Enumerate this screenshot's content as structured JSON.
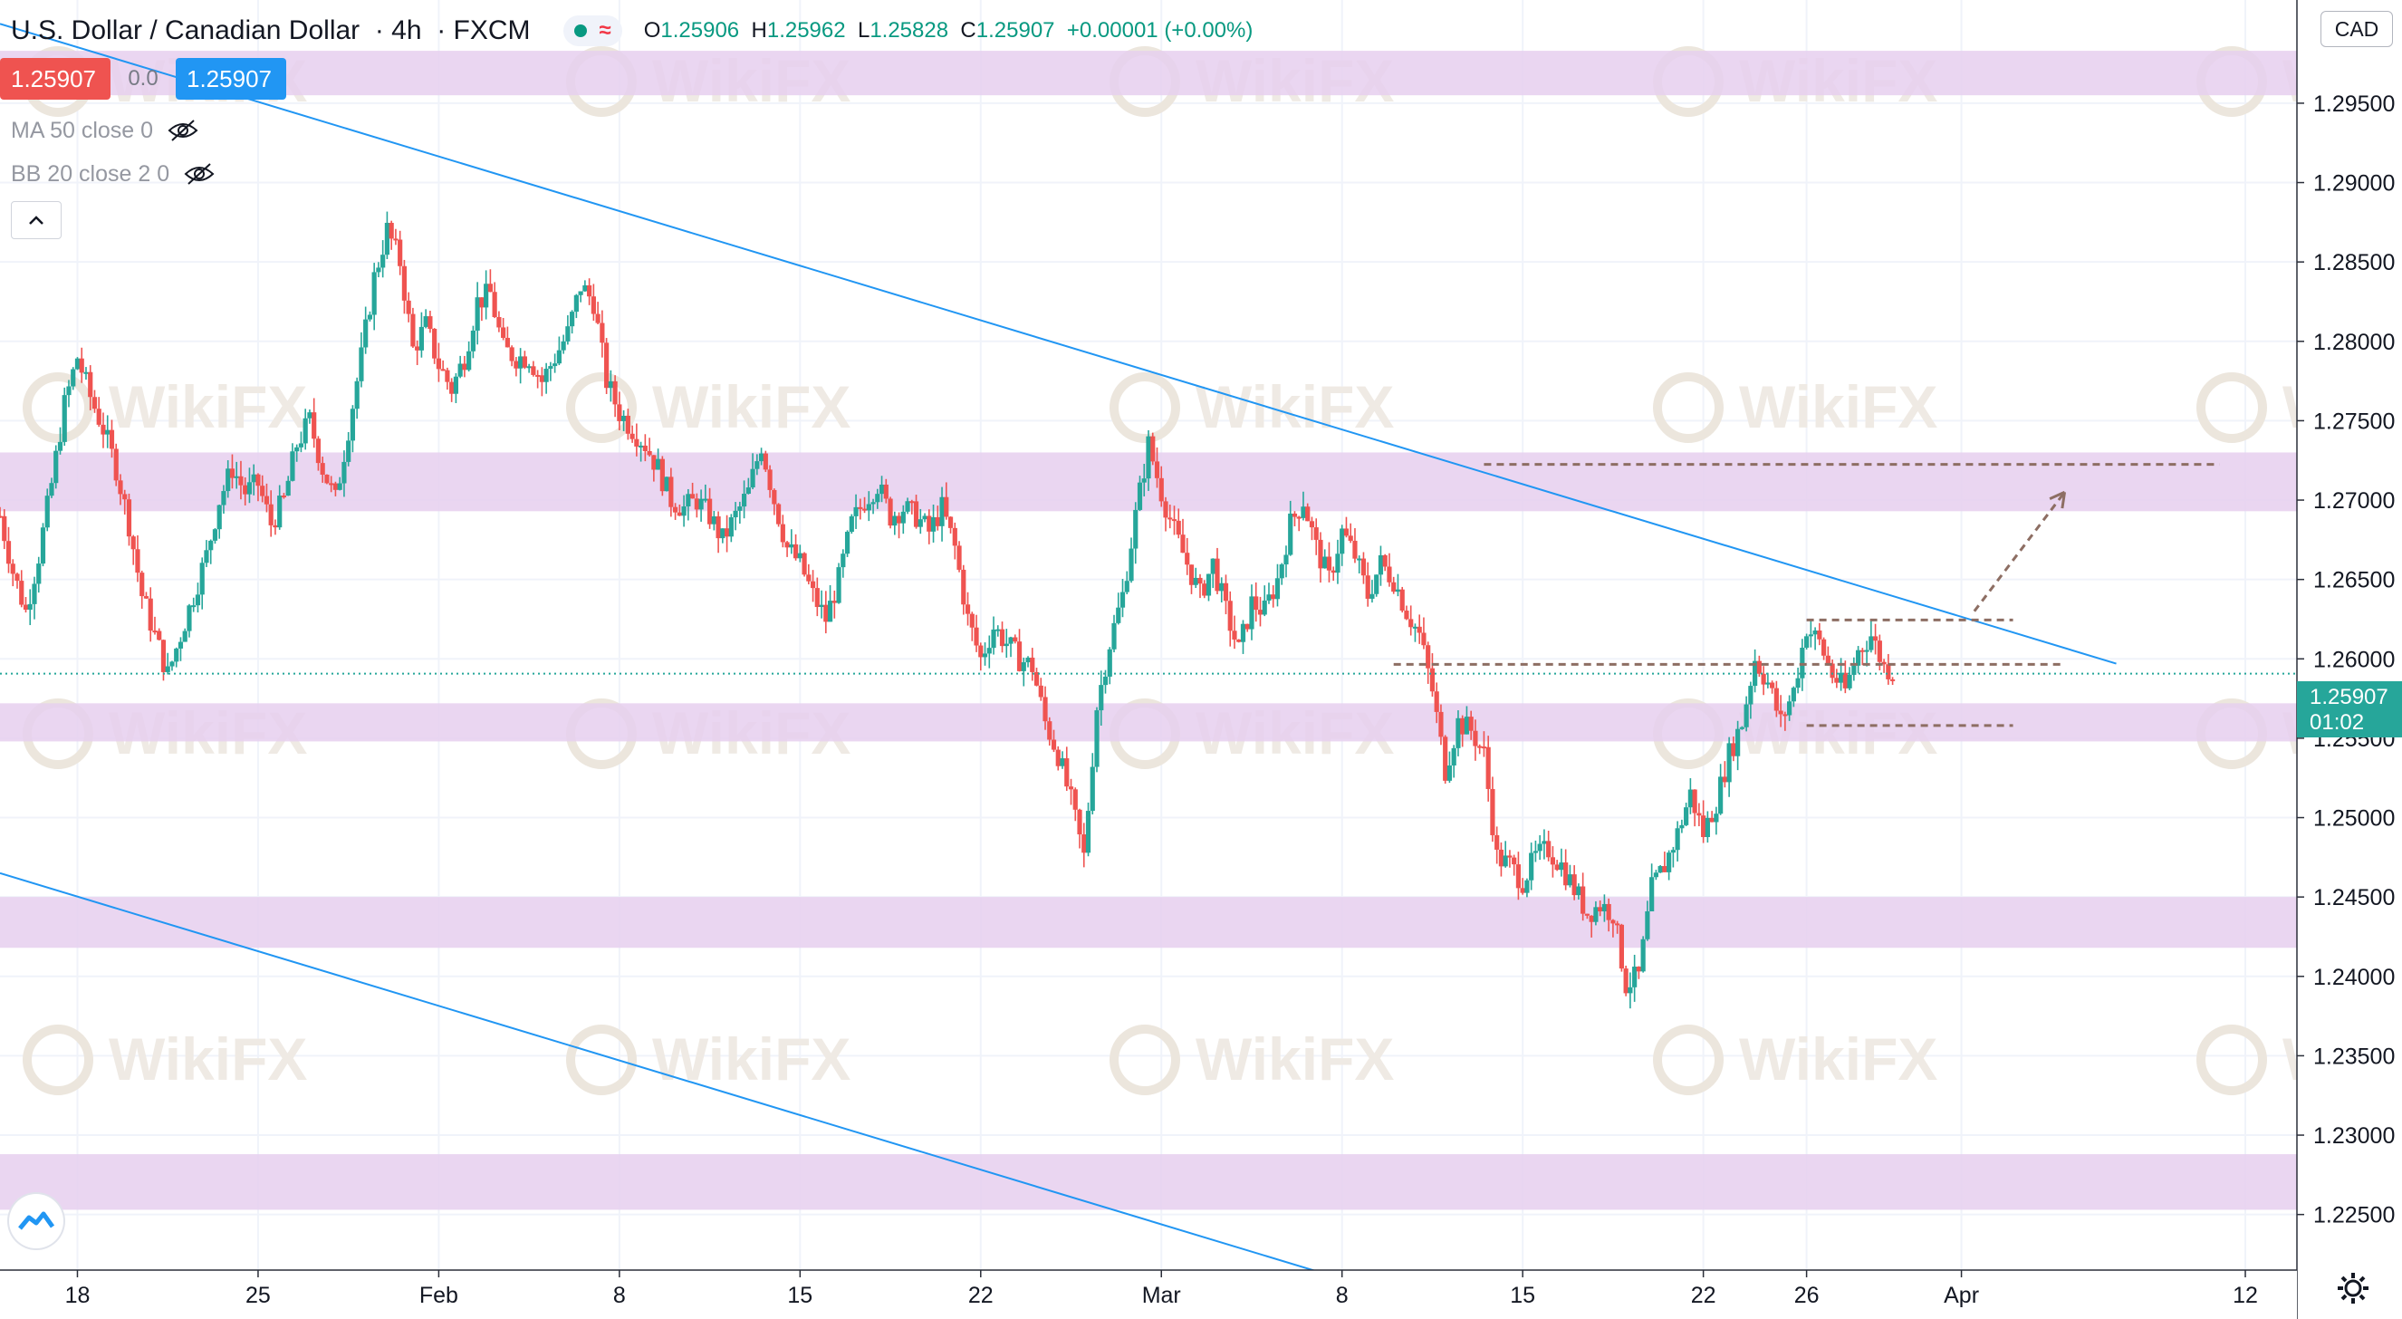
{
  "header": {
    "symbol": "U.S. Dollar / Canadian Dollar",
    "interval": "4h",
    "exchange": "FXCM",
    "ohlc": {
      "o_label": "O",
      "o": "1.25906",
      "h_label": "H",
      "h": "1.25962",
      "l_label": "L",
      "l": "1.25828",
      "c_label": "C",
      "c": "1.25907",
      "change": "+0.00001 (+0.00%)"
    }
  },
  "trade": {
    "sell": "1.25907",
    "spread": "0.0",
    "buy": "1.25907"
  },
  "indicators": [
    {
      "label": "MA 50 close 0"
    },
    {
      "label": "BB 20 close 2 0"
    }
  ],
  "currency": "CAD",
  "last_price": {
    "price": "1.25907",
    "countdown": "01:02"
  },
  "watermark": "WikiFX",
  "colors": {
    "up": "#26a69a",
    "down": "#ef5350",
    "zone": "#e6cfee",
    "trendline": "#2196f3",
    "projection": "#8d6e63"
  },
  "chart_data": {
    "type": "candlestick",
    "ylim": [
      1.2215,
      1.3015
    ],
    "y_ticks": [
      "1.29500",
      "1.29000",
      "1.28500",
      "1.28000",
      "1.27500",
      "1.27000",
      "1.26500",
      "1.26000",
      "1.25500",
      "1.25000",
      "1.24500",
      "1.24000",
      "1.23500",
      "1.23000",
      "1.22500"
    ],
    "x_ticks": [
      {
        "label": "18",
        "day": 0
      },
      {
        "label": "25",
        "day": 7
      },
      {
        "label": "Feb",
        "day": 14
      },
      {
        "label": "8",
        "day": 21
      },
      {
        "label": "15",
        "day": 28
      },
      {
        "label": "22",
        "day": 35
      },
      {
        "label": "Mar",
        "day": 42
      },
      {
        "label": "8",
        "day": 49
      },
      {
        "label": "15",
        "day": 56
      },
      {
        "label": "22",
        "day": 63
      },
      {
        "label": "26",
        "day": 67
      },
      {
        "label": "Apr",
        "day": 73
      },
      {
        "label": "12",
        "day": 84
      }
    ],
    "x_range_days": [
      -3,
      86
    ],
    "zones": [
      [
        1.2955,
        1.2983
      ],
      [
        1.2693,
        1.273
      ],
      [
        1.2548,
        1.2572
      ],
      [
        1.2418,
        1.245
      ],
      [
        1.2253,
        1.2288
      ]
    ],
    "trendlines": [
      {
        "from": [
          -3,
          1.3
        ],
        "to": [
          79,
          1.2597
        ]
      },
      {
        "from": [
          -3,
          1.2465
        ],
        "to": [
          56,
          1.2175
        ]
      }
    ],
    "levels": [
      {
        "y": 1.25965,
        "from": 51,
        "to": 77
      },
      {
        "y": 1.26245,
        "from": 67,
        "to": 75
      },
      {
        "y": 1.2558,
        "from": 67,
        "to": 75
      },
      {
        "y": 1.27225,
        "from": 54.5,
        "to": 83
      }
    ],
    "projection": {
      "from": [
        73.5,
        1.263
      ],
      "to": [
        77,
        1.2705
      ]
    },
    "last_price_level": 1.25907,
    "price_path": [
      [
        -3,
        1.269
      ],
      [
        -2.5,
        1.2655
      ],
      [
        -2,
        1.263
      ],
      [
        -1.5,
        1.2665
      ],
      [
        -1,
        1.271
      ],
      [
        -0.5,
        1.276
      ],
      [
        0,
        1.279
      ],
      [
        0.5,
        1.2765
      ],
      [
        1,
        1.2745
      ],
      [
        1.5,
        1.272
      ],
      [
        2,
        1.2685
      ],
      [
        2.5,
        1.264
      ],
      [
        3,
        1.2615
      ],
      [
        3.5,
        1.259
      ],
      [
        4,
        1.2615
      ],
      [
        4.5,
        1.264
      ],
      [
        5,
        1.2665
      ],
      [
        5.5,
        1.27
      ],
      [
        6,
        1.272
      ],
      [
        6.5,
        1.2705
      ],
      [
        7,
        1.271
      ],
      [
        7.5,
        1.2685
      ],
      [
        8,
        1.27
      ],
      [
        8.5,
        1.2735
      ],
      [
        9,
        1.275
      ],
      [
        9.5,
        1.272
      ],
      [
        10,
        1.27
      ],
      [
        10.5,
        1.2745
      ],
      [
        11,
        1.279
      ],
      [
        11.5,
        1.284
      ],
      [
        12,
        1.287
      ],
      [
        12.5,
        1.285
      ],
      [
        13,
        1.2795
      ],
      [
        13.5,
        1.281
      ],
      [
        14,
        1.2785
      ],
      [
        14.5,
        1.277
      ],
      [
        15,
        1.279
      ],
      [
        15.5,
        1.2825
      ],
      [
        16,
        1.283
      ],
      [
        16.5,
        1.2795
      ],
      [
        17,
        1.279
      ],
      [
        17.5,
        1.279
      ],
      [
        18,
        1.2775
      ],
      [
        18.5,
        1.279
      ],
      [
        19,
        1.2805
      ],
      [
        19.5,
        1.2835
      ],
      [
        20,
        1.2825
      ],
      [
        20.5,
        1.2775
      ],
      [
        21,
        1.2755
      ],
      [
        21.5,
        1.2745
      ],
      [
        22,
        1.2735
      ],
      [
        22.5,
        1.272
      ],
      [
        23,
        1.27
      ],
      [
        23.5,
        1.2695
      ],
      [
        24,
        1.27
      ],
      [
        24.5,
        1.269
      ],
      [
        25,
        1.2675
      ],
      [
        25.5,
        1.269
      ],
      [
        26,
        1.2705
      ],
      [
        26.5,
        1.2735
      ],
      [
        27,
        1.27
      ],
      [
        27.5,
        1.267
      ],
      [
        28,
        1.266
      ],
      [
        28.5,
        1.264
      ],
      [
        29,
        1.2625
      ],
      [
        29.5,
        1.265
      ],
      [
        30,
        1.2685
      ],
      [
        30.5,
        1.27
      ],
      [
        31,
        1.271
      ],
      [
        31.5,
        1.269
      ],
      [
        32,
        1.2695
      ],
      [
        32.5,
        1.269
      ],
      [
        33,
        1.268
      ],
      [
        33.5,
        1.2695
      ],
      [
        34,
        1.267
      ],
      [
        34.5,
        1.2625
      ],
      [
        35,
        1.26
      ],
      [
        35.5,
        1.262
      ],
      [
        36,
        1.261
      ],
      [
        36.5,
        1.26
      ],
      [
        37,
        1.2595
      ],
      [
        37.5,
        1.256
      ],
      [
        38,
        1.254
      ],
      [
        38.5,
        1.251
      ],
      [
        39,
        1.2475
      ],
      [
        39.5,
        1.257
      ],
      [
        40,
        1.261
      ],
      [
        40.5,
        1.264
      ],
      [
        41,
        1.269
      ],
      [
        41.5,
        1.2735
      ],
      [
        42,
        1.2705
      ],
      [
        42.5,
        1.268
      ],
      [
        43,
        1.266
      ],
      [
        43.5,
        1.264
      ],
      [
        44,
        1.266
      ],
      [
        44.5,
        1.263
      ],
      [
        45,
        1.2605
      ],
      [
        45.5,
        1.2635
      ],
      [
        46,
        1.263
      ],
      [
        46.5,
        1.265
      ],
      [
        47,
        1.2685
      ],
      [
        47.5,
        1.27
      ],
      [
        48,
        1.267
      ],
      [
        48.5,
        1.265
      ],
      [
        49,
        1.268
      ],
      [
        49.5,
        1.2665
      ],
      [
        50,
        1.264
      ],
      [
        50.5,
        1.266
      ],
      [
        51,
        1.265
      ],
      [
        51.5,
        1.263
      ],
      [
        52,
        1.2615
      ],
      [
        52.5,
        1.258
      ],
      [
        53,
        1.253
      ],
      [
        53.5,
        1.256
      ],
      [
        54,
        1.2555
      ],
      [
        54.5,
        1.254
      ],
      [
        55,
        1.2475
      ],
      [
        55.5,
        1.247
      ],
      [
        56,
        1.246
      ],
      [
        56.5,
        1.2475
      ],
      [
        57,
        1.248
      ],
      [
        57.5,
        1.247
      ],
      [
        58,
        1.2455
      ],
      [
        58.5,
        1.244
      ],
      [
        59,
        1.2445
      ],
      [
        59.5,
        1.244
      ],
      [
        60,
        1.2395
      ],
      [
        60.5,
        1.24
      ],
      [
        61,
        1.2455
      ],
      [
        61.5,
        1.247
      ],
      [
        62,
        1.249
      ],
      [
        62.5,
        1.2515
      ],
      [
        63,
        1.249
      ],
      [
        63.5,
        1.251
      ],
      [
        64,
        1.254
      ],
      [
        64.5,
        1.256
      ],
      [
        65,
        1.26
      ],
      [
        65.5,
        1.2585
      ],
      [
        66,
        1.256
      ],
      [
        66.5,
        1.258
      ],
      [
        67,
        1.262
      ],
      [
        67.5,
        1.261
      ],
      [
        68,
        1.259
      ],
      [
        68.5,
        1.258
      ],
      [
        69,
        1.2605
      ],
      [
        69.5,
        1.2615
      ],
      [
        70,
        1.2595
      ],
      [
        70.5,
        1.2591
      ]
    ]
  }
}
